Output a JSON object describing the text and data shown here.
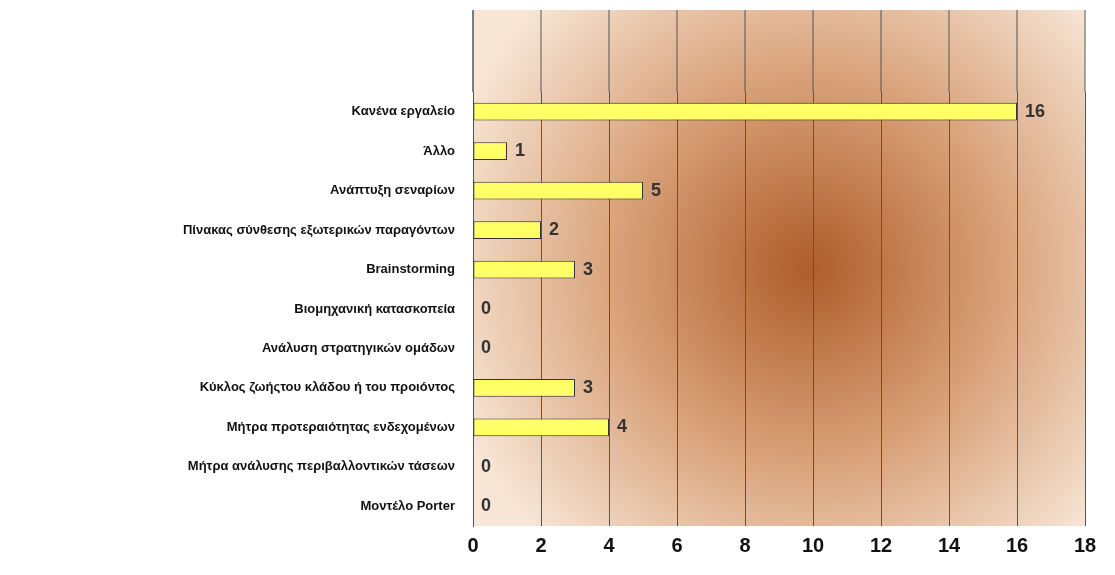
{
  "chart_data": {
    "type": "bar",
    "orientation": "horizontal",
    "categories": [
      "Κανένα εργαλείο",
      "Άλλο",
      "Ανάπτυξη σεναρίων",
      "Πίνακας σύνθεσης εξωτερικών παραγόντων",
      "Brainstorming",
      "Βιομηχανική κατασκοπεία",
      "Ανάλυση στρατηγικών ομάδων",
      "Κύκλος ζωήςτου κλάδου ή του προιόντος",
      "Μήτρα προτεραιότητας ενδεχομένων",
      "Μήτρα ανάλυσης περιβαλλοντικών τάσεων",
      "Μοντέλο Porter"
    ],
    "values": [
      16,
      1,
      5,
      2,
      3,
      0,
      0,
      3,
      4,
      0,
      0
    ],
    "color": "#ffff66",
    "xlim": [
      0,
      18
    ],
    "xticks": [
      0,
      2,
      4,
      6,
      8,
      10,
      12,
      14,
      16,
      18
    ],
    "grid": "x",
    "legend": false,
    "data_labels": true
  }
}
